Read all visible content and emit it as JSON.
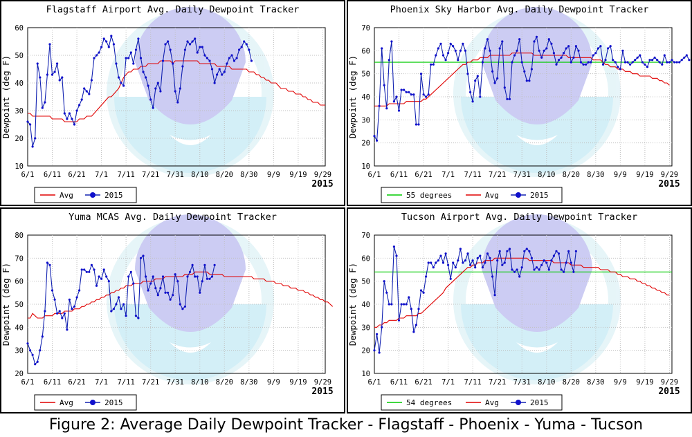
{
  "caption": "Figure 2: Average Daily Dewpoint Tracker - Flagstaff - Phoenix - Yuma - Tucson",
  "colors": {
    "avg": "#e00000",
    "series2015": "#1020b0",
    "reference": "#00cc00",
    "marker": "#1010cc"
  },
  "chart_data": [
    {
      "type": "line",
      "title": "Flagstaff Airport Avg. Daily Dewpoint Tracker",
      "ylabel": "Dewpoint (deg F)",
      "xlabel": "2015",
      "x_ticks": [
        "6/1",
        "6/11",
        "6/21",
        "7/1",
        "7/11",
        "7/21",
        "7/31",
        "8/10",
        "8/20",
        "8/30",
        "9/9",
        "9/19",
        "9/29"
      ],
      "ylim": [
        10,
        60
      ],
      "y_ticks": [
        10,
        20,
        30,
        40,
        50,
        60
      ],
      "grid": true,
      "legend_position": "bottom-left",
      "series": [
        {
          "name": "Avg",
          "color": "#e00000",
          "markers": false,
          "values": [
            29,
            29,
            28,
            28,
            28,
            28,
            28,
            28,
            28,
            28,
            27,
            27,
            27,
            27,
            27,
            26,
            26,
            26,
            26,
            26,
            26,
            27,
            27,
            27,
            28,
            28,
            28,
            29,
            30,
            31,
            32,
            33,
            34,
            35,
            35,
            36,
            37,
            38,
            40,
            42,
            43,
            44,
            44,
            45,
            45,
            45,
            46,
            46,
            46,
            47,
            47,
            47,
            47,
            47,
            48,
            48,
            48,
            48,
            48,
            47,
            48,
            48,
            48,
            48,
            48,
            48,
            48,
            48,
            48,
            48,
            47,
            47,
            47,
            47,
            47,
            47,
            47,
            46,
            46,
            46,
            46,
            46,
            46,
            45,
            45,
            45,
            45,
            45,
            45,
            45,
            44,
            44,
            44,
            43,
            43,
            42,
            42,
            41,
            41,
            40,
            40,
            40,
            39,
            38,
            38,
            38,
            37,
            37,
            37,
            36,
            36,
            36,
            35,
            35,
            34,
            34,
            33,
            33,
            33,
            32,
            32,
            32
          ]
        },
        {
          "name": "2015",
          "color": "#1020b0",
          "markers": true,
          "values": [
            26,
            25,
            17,
            20,
            47,
            42,
            31,
            33,
            43,
            54,
            43,
            44,
            47,
            41,
            42,
            29,
            27,
            29,
            27,
            25,
            30,
            32,
            34,
            38,
            37,
            36,
            41,
            49,
            50,
            51,
            53,
            56,
            55,
            53,
            57,
            54,
            47,
            42,
            40,
            39,
            49,
            49,
            51,
            47,
            52,
            56,
            49,
            44,
            42,
            39,
            34,
            31,
            38,
            40,
            37,
            48,
            54,
            55,
            52,
            47,
            37,
            33,
            38,
            46,
            52,
            55,
            54,
            55,
            56,
            51,
            53,
            53,
            50,
            49,
            48,
            45,
            40,
            43,
            45,
            43,
            44,
            47,
            49,
            50,
            48,
            49,
            52,
            53,
            55,
            54,
            52,
            48
          ]
        }
      ]
    },
    {
      "type": "line",
      "title": "Phoenix Sky Harbor Avg. Daily Dewpoint Tracker",
      "ylabel": "Dewpoint (deg F)",
      "xlabel": "2015",
      "x_ticks": [
        "6/1",
        "6/11",
        "6/21",
        "7/1",
        "7/11",
        "7/21",
        "7/31",
        "8/10",
        "8/20",
        "8/30",
        "9/9",
        "9/19",
        "9/29"
      ],
      "ylim": [
        10,
        70
      ],
      "y_ticks": [
        10,
        20,
        30,
        40,
        50,
        60,
        70
      ],
      "grid": true,
      "legend_position": "bottom-left",
      "series": [
        {
          "name": "55 degrees",
          "color": "#00cc00",
          "markers": false,
          "constant": 55
        },
        {
          "name": "Avg",
          "color": "#e00000",
          "markers": false,
          "values": [
            36,
            36,
            36,
            36,
            36,
            36,
            37,
            37,
            37,
            37,
            37,
            37,
            37,
            38,
            38,
            38,
            38,
            38,
            38,
            38,
            39,
            39,
            40,
            41,
            42,
            43,
            44,
            45,
            46,
            47,
            48,
            49,
            50,
            51,
            52,
            53,
            54,
            54,
            55,
            55,
            56,
            56,
            56,
            57,
            57,
            57,
            57,
            58,
            58,
            58,
            58,
            58,
            58,
            58,
            58,
            58,
            59,
            59,
            59,
            59,
            59,
            59,
            59,
            59,
            59,
            58,
            58,
            58,
            58,
            58,
            58,
            58,
            58,
            58,
            58,
            58,
            58,
            58,
            58,
            57,
            57,
            57,
            57,
            57,
            57,
            57,
            57,
            57,
            57,
            56,
            56,
            56,
            56,
            55,
            54,
            54,
            53,
            53,
            53,
            52,
            52,
            52,
            51,
            51,
            51,
            50,
            50,
            50,
            49,
            49,
            49,
            49,
            49,
            48,
            48,
            48,
            47,
            47,
            46,
            46,
            45
          ]
        },
        {
          "name": "2015",
          "color": "#1020b0",
          "markers": true,
          "values": [
            23,
            21,
            36,
            61,
            45,
            35,
            56,
            64,
            38,
            40,
            34,
            43,
            43,
            42,
            42,
            41,
            41,
            28,
            28,
            50,
            41,
            40,
            41,
            54,
            54,
            58,
            61,
            63,
            58,
            56,
            59,
            63,
            62,
            60,
            56,
            60,
            63,
            60,
            50,
            42,
            38,
            47,
            49,
            40,
            55,
            61,
            65,
            60,
            51,
            46,
            48,
            61,
            64,
            44,
            39,
            39,
            55,
            58,
            60,
            65,
            55,
            51,
            47,
            47,
            52,
            64,
            66,
            60,
            57,
            60,
            61,
            65,
            63,
            59,
            54,
            56,
            57,
            59,
            61,
            62,
            55,
            57,
            62,
            60,
            55,
            54,
            54,
            55,
            55,
            58,
            59,
            61,
            62,
            54,
            56,
            61,
            62,
            56,
            55,
            53,
            52,
            60,
            55,
            55,
            54,
            55,
            56,
            57,
            58,
            55,
            54,
            53,
            56,
            56,
            57,
            56,
            55,
            54,
            58,
            55,
            55,
            56,
            55,
            55,
            55,
            56,
            57,
            58,
            56
          ]
        }
      ]
    },
    {
      "type": "line",
      "title": "Yuma MCAS Avg. Daily Dewpoint Tracker",
      "ylabel": "Dewpoint (deg F)",
      "xlabel": "2015",
      "x_ticks": [
        "6/1",
        "6/11",
        "6/21",
        "7/1",
        "7/11",
        "7/21",
        "7/31",
        "8/10",
        "8/20",
        "8/30",
        "9/9",
        "9/19",
        "9/29"
      ],
      "ylim": [
        20,
        80
      ],
      "y_ticks": [
        20,
        30,
        40,
        50,
        60,
        70,
        80
      ],
      "grid": true,
      "legend_position": "bottom-left",
      "series": [
        {
          "name": "Avg",
          "color": "#e00000",
          "markers": false,
          "values": [
            44,
            44,
            46,
            45,
            44,
            44,
            44,
            45,
            45,
            45,
            45,
            46,
            46,
            46,
            46,
            47,
            47,
            47,
            47,
            48,
            48,
            48,
            49,
            49,
            50,
            50,
            51,
            51,
            52,
            52,
            53,
            53,
            54,
            54,
            55,
            55,
            56,
            56,
            57,
            57,
            58,
            58,
            58,
            59,
            59,
            59,
            59,
            60,
            60,
            60,
            60,
            60,
            61,
            61,
            61,
            61,
            62,
            62,
            62,
            62,
            62,
            62,
            62,
            62,
            63,
            63,
            63,
            63,
            64,
            64,
            64,
            64,
            64,
            64,
            63,
            63,
            63,
            63,
            63,
            63,
            62,
            62,
            62,
            62,
            62,
            62,
            62,
            62,
            62,
            62,
            62,
            62,
            61,
            61,
            61,
            61,
            61,
            60,
            60,
            60,
            60,
            59,
            59,
            59,
            58,
            58,
            58,
            57,
            57,
            57,
            56,
            56,
            56,
            55,
            55,
            54,
            54,
            53,
            53,
            52,
            52,
            51,
            51,
            50,
            49
          ]
        },
        {
          "name": "2015",
          "color": "#1020b0",
          "markers": true,
          "values": [
            33,
            30,
            28,
            24,
            25,
            30,
            36,
            47,
            68,
            67,
            56,
            52,
            46,
            47,
            44,
            46,
            39,
            52,
            48,
            49,
            53,
            56,
            65,
            65,
            64,
            64,
            67,
            65,
            58,
            62,
            61,
            65,
            62,
            60,
            47,
            48,
            50,
            53,
            48,
            50,
            45,
            62,
            64,
            59,
            45,
            44,
            70,
            71,
            62,
            56,
            59,
            62,
            57,
            54,
            57,
            62,
            55,
            55,
            52,
            54,
            63,
            60,
            50,
            48,
            49,
            62,
            64,
            67,
            62,
            62,
            55,
            60,
            67,
            61,
            61,
            62,
            67
          ]
        }
      ]
    },
    {
      "type": "line",
      "title": "Tucson Airport Avg. Daily Dewpoint Tracker",
      "ylabel": "Dewpoint (deg F)",
      "xlabel": "2015",
      "x_ticks": [
        "6/1",
        "6/11",
        "6/21",
        "7/1",
        "7/11",
        "7/21",
        "7/31",
        "8/10",
        "8/20",
        "8/30",
        "9/9",
        "9/19",
        "9/29"
      ],
      "ylim": [
        10,
        70
      ],
      "y_ticks": [
        10,
        20,
        30,
        40,
        50,
        60,
        70
      ],
      "grid": true,
      "legend_position": "bottom-left",
      "series": [
        {
          "name": "54 degrees",
          "color": "#00cc00",
          "markers": false,
          "constant": 54
        },
        {
          "name": "Avg",
          "color": "#e00000",
          "markers": false,
          "values": [
            30,
            30,
            31,
            31,
            32,
            32,
            33,
            33,
            33,
            33,
            34,
            34,
            34,
            35,
            35,
            35,
            35,
            35,
            36,
            36,
            37,
            38,
            39,
            40,
            41,
            42,
            43,
            44,
            45,
            47,
            48,
            49,
            50,
            51,
            52,
            53,
            54,
            55,
            56,
            56,
            57,
            57,
            58,
            58,
            58,
            59,
            59,
            59,
            59,
            60,
            60,
            60,
            60,
            60,
            60,
            60,
            60,
            60,
            60,
            60,
            60,
            60,
            60,
            59,
            59,
            59,
            59,
            59,
            59,
            59,
            59,
            59,
            59,
            58,
            58,
            58,
            58,
            58,
            58,
            58,
            57,
            57,
            57,
            57,
            57,
            56,
            56,
            56,
            56,
            56,
            56,
            56,
            55,
            55,
            55,
            55,
            54,
            54,
            54,
            53,
            53,
            52,
            52,
            52,
            51,
            51,
            51,
            50,
            50,
            49,
            49,
            48,
            48,
            47,
            47,
            46,
            46,
            45,
            45,
            44,
            44
          ]
        },
        {
          "name": "2015",
          "color": "#1020b0",
          "markers": true,
          "values": [
            20,
            27,
            19,
            30,
            50,
            45,
            40,
            40,
            65,
            61,
            33,
            40,
            40,
            40,
            43,
            38,
            28,
            31,
            38,
            46,
            45,
            52,
            58,
            58,
            56,
            58,
            59,
            61,
            58,
            62,
            57,
            51,
            58,
            56,
            59,
            64,
            58,
            59,
            62,
            57,
            59,
            56,
            60,
            61,
            56,
            58,
            62,
            60,
            52,
            44,
            59,
            63,
            57,
            58,
            63,
            64,
            55,
            54,
            55,
            52,
            56,
            63,
            64,
            63,
            60,
            55,
            56,
            55,
            57,
            59,
            58,
            55,
            59,
            61,
            63,
            62,
            55,
            54,
            58,
            63,
            58,
            54,
            63
          ]
        }
      ]
    }
  ]
}
